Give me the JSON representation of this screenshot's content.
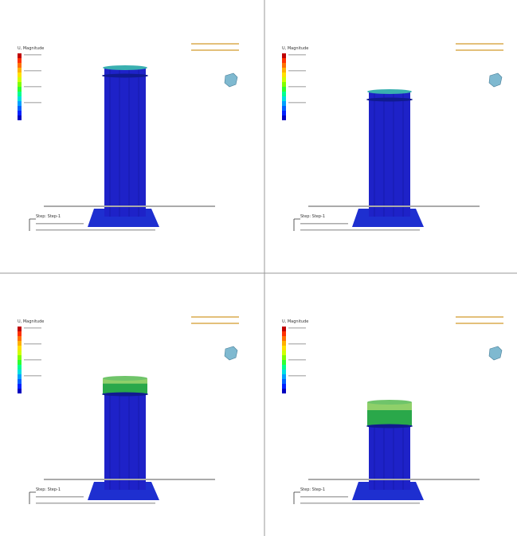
{
  "panels": [
    {
      "legend_title": "U, Magnitude",
      "step": "Step: Step-1"
    },
    {
      "legend_title": "U, Magnitude",
      "step": "Step: Step-1"
    },
    {
      "legend_title": "U, Magnitude",
      "step": "Step: Step-1"
    },
    {
      "legend_title": "U, Magnitude",
      "step": "Step: Step-1"
    }
  ]
}
